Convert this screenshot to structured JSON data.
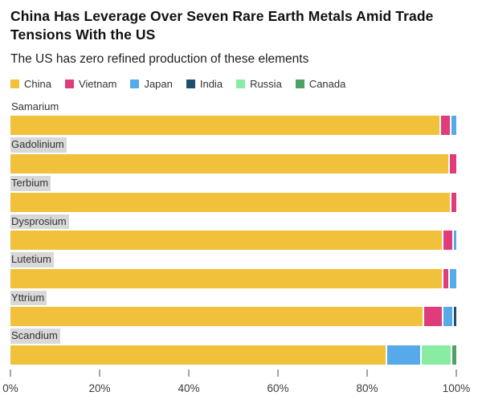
{
  "header": {
    "title": "China Has Leverage Over Seven Rare Earth Metals Amid Trade Tensions With the US",
    "subtitle": "The US has zero refined production of these elements"
  },
  "legend": [
    {
      "label": "China",
      "color": "#F1C13B"
    },
    {
      "label": "Vietnam",
      "color": "#E03C7B"
    },
    {
      "label": "Japan",
      "color": "#56AAE9"
    },
    {
      "label": "India",
      "color": "#1F4F6F"
    },
    {
      "label": "Russia",
      "color": "#88ECA3"
    },
    {
      "label": "Canada",
      "color": "#4FA064"
    }
  ],
  "chart_data": {
    "type": "bar",
    "orientation": "horizontal",
    "stacked": true,
    "unit": "% share of refined production",
    "title": "China Has Leverage Over Seven Rare Earth Metals Amid Trade Tensions With the US",
    "subtitle": "The US has zero refined production of these elements",
    "legend_position": "top",
    "grid": false,
    "categories": [
      "Samarium",
      "Gadolinium",
      "Terbium",
      "Dysprosium",
      "Lutetium",
      "Yttrium",
      "Scandium"
    ],
    "category_label_highlight": [
      false,
      true,
      true,
      true,
      true,
      true,
      true
    ],
    "series": [
      {
        "name": "China",
        "color": "#F1C13B",
        "values": [
          97,
          98.5,
          99,
          97.5,
          97.5,
          93.5,
          85
        ]
      },
      {
        "name": "Vietnam",
        "color": "#E03C7B",
        "values": [
          2,
          1.5,
          1,
          2,
          1,
          4,
          0
        ]
      },
      {
        "name": "Japan",
        "color": "#56AAE9",
        "values": [
          1,
          0,
          0,
          0.5,
          1.5,
          2,
          7.5
        ]
      },
      {
        "name": "India",
        "color": "#1F4F6F",
        "values": [
          0,
          0,
          0,
          0,
          0,
          0.5,
          0
        ]
      },
      {
        "name": "Russia",
        "color": "#88ECA3",
        "values": [
          0,
          0,
          0,
          0,
          0,
          0,
          6.5
        ]
      },
      {
        "name": "Canada",
        "color": "#4FA064",
        "values": [
          0,
          0,
          0,
          0,
          0,
          0,
          1
        ]
      }
    ],
    "x_axis": {
      "range": [
        0,
        100
      ],
      "ticks": [
        "0%",
        "20%",
        "40%",
        "60%",
        "80%",
        "100%"
      ],
      "tick_values": [
        0,
        20,
        40,
        60,
        80,
        100
      ]
    }
  }
}
